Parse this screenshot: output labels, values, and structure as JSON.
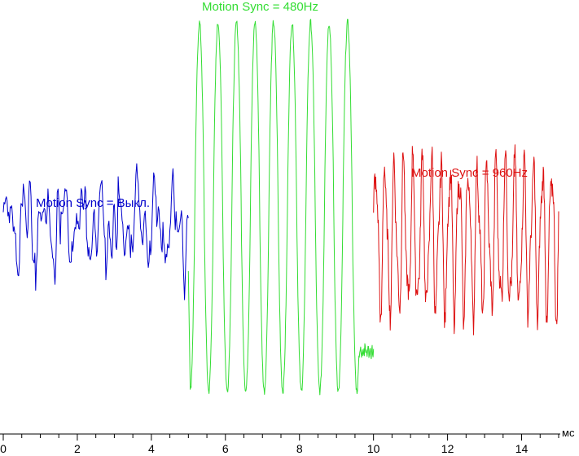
{
  "chart_data": {
    "type": "line",
    "title": "",
    "xlabel": "",
    "ylabel": "",
    "x_unit": "мс",
    "xlim": [
      0,
      15
    ],
    "ylim": [
      -1,
      1
    ],
    "x_ticks": [
      0,
      2,
      4,
      6,
      8,
      10,
      12,
      14
    ],
    "x_tick_labels": [
      "0",
      "2",
      "4",
      "6",
      "8",
      "10",
      "12",
      "14"
    ],
    "grid": false,
    "legend": "none",
    "series": [
      {
        "name": "Motion Sync = Выкл.",
        "color": "#0000cc",
        "x_range": [
          0.0,
          5.0
        ],
        "period_ms": 0.5,
        "y": [
          -0.05,
          0.12,
          0.07,
          -0.15,
          -0.22,
          0.12,
          0.15,
          -0.1,
          -0.28,
          0.05,
          0.12,
          0.03,
          -0.18,
          0.08,
          0.14,
          0.02,
          -0.2,
          -0.35,
          0.1,
          0.08,
          -0.12,
          0.0,
          0.14,
          -0.08,
          -0.22,
          0.12,
          0.11,
          -0.1,
          -0.25,
          0.06
        ]
      },
      {
        "name": "Motion Sync = 480Hz",
        "color": "#33dd33",
        "x_range": [
          5.0,
          10.0
        ],
        "period_ms": 0.5,
        "amplitude": [
          -0.88,
          0.96
        ]
      },
      {
        "name": "Motion Sync = 960Hz",
        "color": "#dd1111",
        "x_range": [
          10.0,
          15.0
        ],
        "period_ms": 0.25,
        "amplitude": [
          -0.55,
          0.32
        ]
      }
    ]
  }
}
